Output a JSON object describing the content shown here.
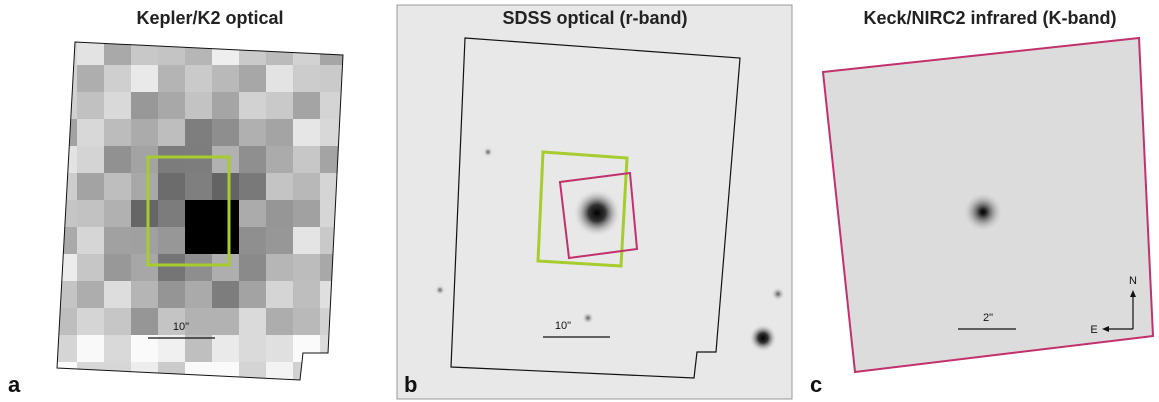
{
  "panels": [
    {
      "title": "Kepler/K2 optical",
      "label": "a",
      "scale_bar": "10\""
    },
    {
      "title": "SDSS optical (r-band)",
      "label": "b",
      "scale_bar": "10\""
    },
    {
      "title": "Keck/NIRC2 infrared (K-band)",
      "label": "c",
      "scale_bar": "2\"",
      "compass": {
        "north": "N",
        "east": "E"
      }
    }
  ]
}
